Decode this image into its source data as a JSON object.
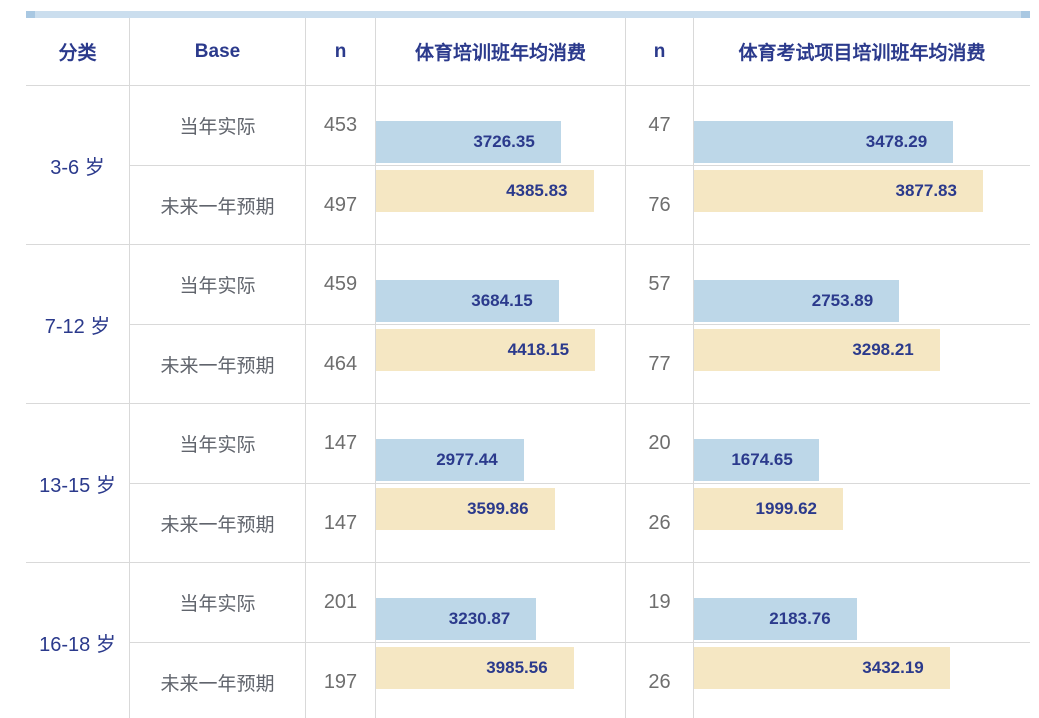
{
  "accent_colors": {
    "navy_text": "#2b3a8c",
    "gray_text": "#6e6e6e",
    "grid_line": "#d9d9d9",
    "stripe": "#cbdeee",
    "stripe_cap": "#a9c8e2",
    "actual_bar": "#bdd7e8",
    "expected_bar": "#f5e7c3"
  },
  "chart_data": {
    "type": "bar",
    "orientation": "horizontal",
    "layout": "table-embedded horizontal bars, one bar per row, labels right-aligned inside bars",
    "headers": [
      "分类",
      "Base",
      "n",
      "体育培训班年均消费",
      "n",
      "体育考试项目培训班年均消费"
    ],
    "legend": [
      {
        "name": "当年实际",
        "color": "#bdd7e8"
      },
      {
        "name": "未来一年预期",
        "color": "#f5e7c3"
      }
    ],
    "bar_scale": {
      "col1": {
        "max": 4418.15,
        "pct": 88
      },
      "col2": {
        "max": 3877.83,
        "pct": 86
      }
    },
    "groups": [
      {
        "category": "3-6 岁",
        "rows": [
          {
            "base": "当年实际",
            "n1": 453,
            "v1": 3726.35,
            "n2": 47,
            "v2": 3478.29
          },
          {
            "base": "未来一年预期",
            "n1": 497,
            "v1": 4385.83,
            "n2": 76,
            "v2": 3877.83
          }
        ]
      },
      {
        "category": "7-12 岁",
        "rows": [
          {
            "base": "当年实际",
            "n1": 459,
            "v1": 3684.15,
            "n2": 57,
            "v2": 2753.89
          },
          {
            "base": "未来一年预期",
            "n1": 464,
            "v1": 4418.15,
            "n2": 77,
            "v2": 3298.21
          }
        ]
      },
      {
        "category": "13-15 岁",
        "rows": [
          {
            "base": "当年实际",
            "n1": 147,
            "v1": 2977.44,
            "n2": 20,
            "v2": 1674.65
          },
          {
            "base": "未来一年预期",
            "n1": 147,
            "v1": 3599.86,
            "n2": 26,
            "v2": 1999.62
          }
        ]
      },
      {
        "category": "16-18 岁",
        "rows": [
          {
            "base": "当年实际",
            "n1": 201,
            "v1": 3230.87,
            "n2": 19,
            "v2": 2183.76
          },
          {
            "base": "未来一年预期",
            "n1": 197,
            "v1": 3985.56,
            "n2": 26,
            "v2": 3432.19
          }
        ]
      }
    ]
  }
}
